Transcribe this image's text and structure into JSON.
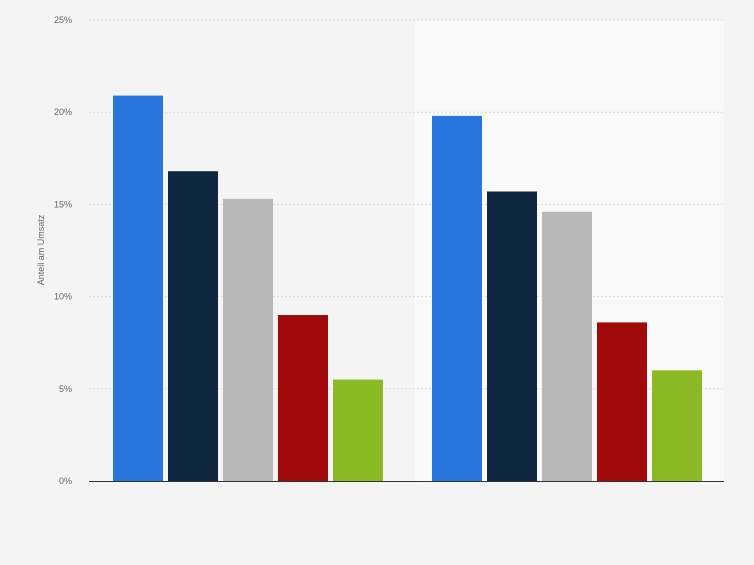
{
  "chart_data": {
    "type": "bar",
    "title": "",
    "xlabel": "",
    "ylabel": "Anteil am Umsatz",
    "ylim": [
      0,
      25
    ],
    "y_ticks": [
      0,
      5,
      10,
      15,
      20,
      25
    ],
    "y_tick_labels": [
      "0%",
      "5%",
      "10%",
      "15%",
      "20%",
      "25%"
    ],
    "grid": true,
    "legend": "none",
    "categories": [
      "",
      ""
    ],
    "colors": [
      "#2876dd",
      "#0f2740",
      "#b7b7b7",
      "#a10a0a",
      "#8aba24"
    ],
    "series": [
      {
        "values": [
          20.9,
          19.8
        ]
      },
      {
        "values": [
          16.8,
          15.7
        ]
      },
      {
        "values": [
          15.3,
          14.6
        ]
      },
      {
        "values": [
          9.0,
          8.6
        ]
      },
      {
        "values": [
          5.5,
          6.0
        ]
      }
    ]
  },
  "style": {
    "background": "#f4f4f4",
    "panel_highlight": "#f9f9f9",
    "gridline": "#d9d9d9",
    "axis": "#333333",
    "tick_text": "#666666"
  }
}
